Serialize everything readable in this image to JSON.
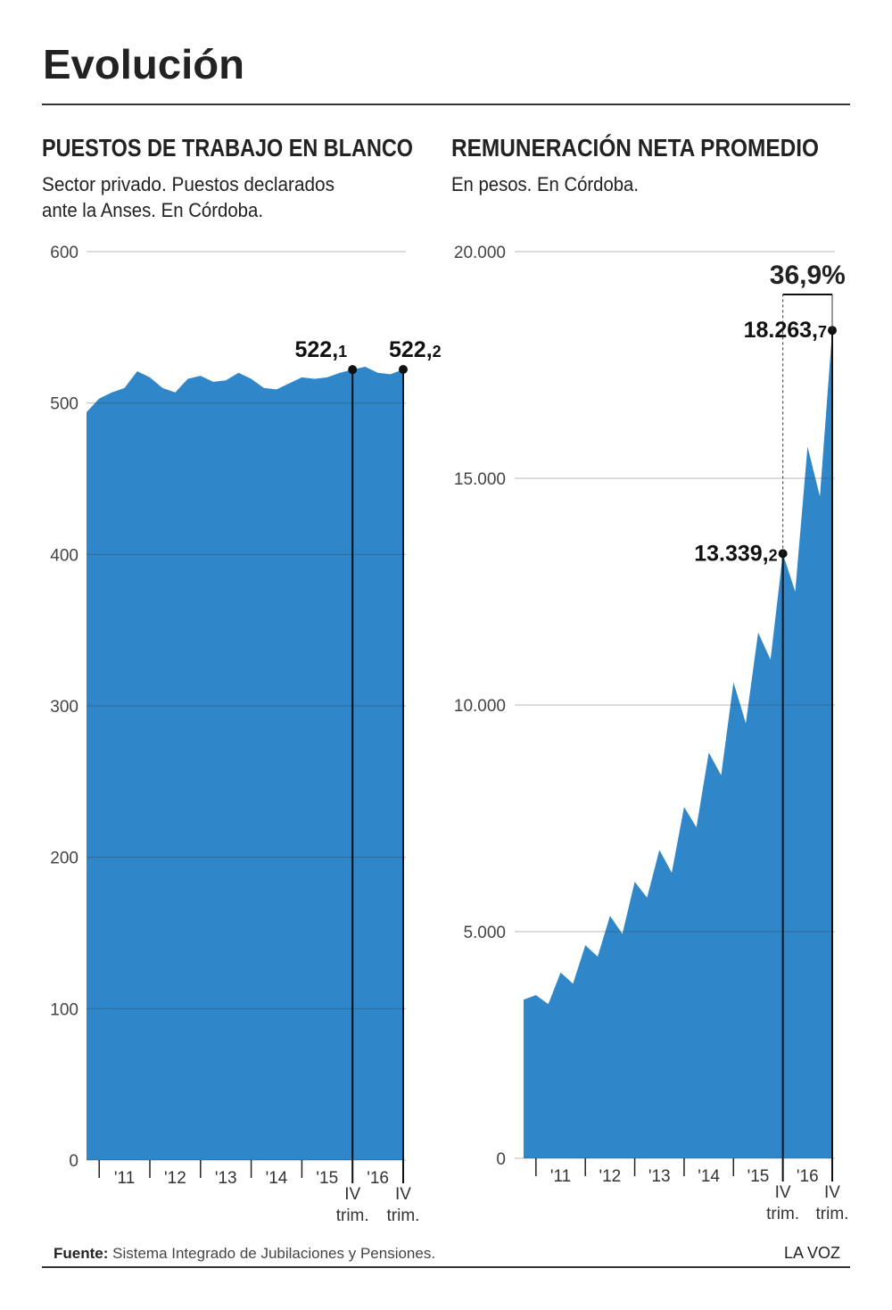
{
  "title": "Evolución",
  "source": {
    "label": "Fuente:",
    "text": "Sistema Integrado de Jubilaciones y Pensiones."
  },
  "brand": "LA VOZ",
  "chart_data": [
    {
      "type": "area",
      "title": "PUESTOS DE TRABAJO EN BLANCO",
      "subtitle": [
        "Sector privado. Puestos declarados",
        "ante la Anses. En Córdoba."
      ],
      "color": "#2f87c9",
      "grid": true,
      "ylim": [
        0,
        600
      ],
      "yticks": [
        0,
        100,
        200,
        300,
        400,
        500,
        600
      ],
      "year_labels": [
        "'11",
        "'12",
        "'13",
        "'14",
        "'15",
        "'16"
      ],
      "marker_label": [
        "IV",
        "trim."
      ],
      "values": [
        494,
        503,
        507,
        510,
        521,
        517,
        510,
        507,
        516,
        518,
        514,
        515,
        520,
        516,
        510,
        509,
        513,
        517,
        516,
        517,
        520,
        522.1,
        524,
        520,
        519,
        522.2
      ],
      "value_labels": [
        null,
        null,
        null,
        null,
        null,
        null,
        null,
        null,
        null,
        null,
        null,
        null,
        null,
        null,
        null,
        null,
        null,
        null,
        null,
        null,
        null,
        "522,1",
        null,
        null,
        null,
        "522,2"
      ]
    },
    {
      "type": "area",
      "title": "REMUNERACIÓN NETA PROMEDIO",
      "subtitle": [
        "En pesos. En Córdoba."
      ],
      "color": "#2f87c9",
      "grid": true,
      "ylim": [
        0,
        20000
      ],
      "yticks": [
        0,
        {
          "value": 5000,
          "label": "5.000"
        },
        {
          "value": 10000,
          "label": "10.000"
        },
        {
          "value": 15000,
          "label": "15.000"
        },
        {
          "value": 20000,
          "label": "20.000"
        }
      ],
      "year_labels": [
        "'11",
        "'12",
        "'13",
        "'14",
        "'15",
        "'16"
      ],
      "marker_label": [
        "IV",
        "trim."
      ],
      "change_label": "36,9%",
      "values": [
        3500,
        3600,
        3400,
        4100,
        3850,
        4700,
        4450,
        5350,
        4950,
        6100,
        5750,
        6800,
        6300,
        7750,
        7300,
        8950,
        8450,
        10500,
        9600,
        11600,
        11000,
        13339.2,
        12500,
        15700,
        14600,
        18263.7
      ],
      "value_labels": [
        null,
        null,
        null,
        null,
        null,
        null,
        null,
        null,
        null,
        null,
        null,
        null,
        null,
        null,
        null,
        null,
        null,
        null,
        null,
        null,
        null,
        "13.339,2",
        null,
        null,
        null,
        "18.263,7"
      ]
    }
  ]
}
